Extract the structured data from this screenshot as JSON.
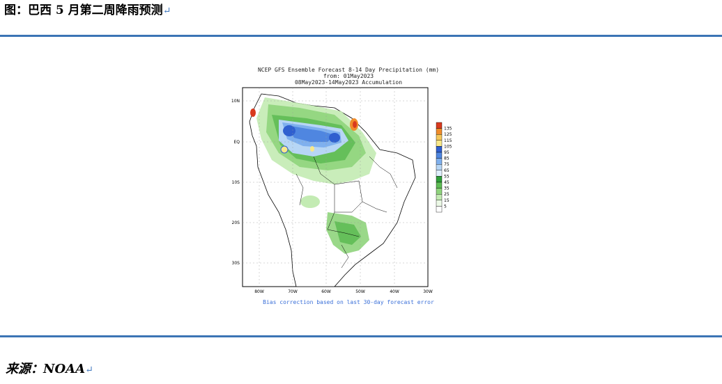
{
  "figure": {
    "title": "图：巴西 5 月第二周降雨预测",
    "return_mark": "↵",
    "source": "来源：NOAA"
  },
  "map": {
    "title_lines": [
      "NCEP GFS Ensemble Forecast 8-14 Day Precipitation (mm)",
      "from: 01May2023",
      "08May2023-14May2023 Accumulation"
    ],
    "note": "Bias correction based on last 30-day forecast error",
    "lat_labels": [
      "10N",
      "EQ",
      "10S",
      "20S",
      "30S"
    ],
    "lon_labels": [
      "80W",
      "70W",
      "60W",
      "50W",
      "40W",
      "30W"
    ],
    "legend": {
      "labels": [
        "135",
        "125",
        "115",
        "105",
        "95",
        "85",
        "75",
        "65",
        "55",
        "45",
        "35",
        "25",
        "15",
        "5"
      ],
      "colors": [
        "#d93a1e",
        "#f08c2a",
        "#f5c75a",
        "#f8e88a",
        "#2f5fcf",
        "#4f86e0",
        "#7fb0ee",
        "#b7d6f5",
        "#dfeefc",
        "#2f9e3a",
        "#5fbd55",
        "#8fd47c",
        "#c3ebb3",
        "#ecf9e6",
        "#ffffff"
      ]
    }
  }
}
